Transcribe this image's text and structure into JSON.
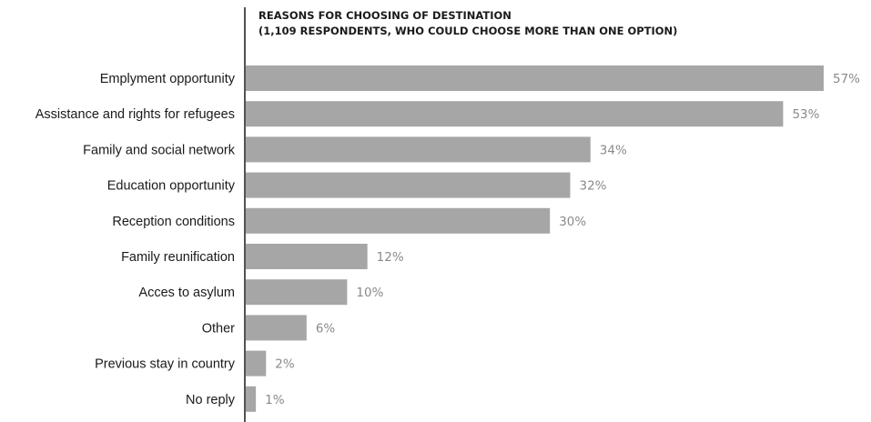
{
  "chart_data": {
    "type": "bar",
    "orientation": "horizontal",
    "title_lines": [
      "REASONS FOR CHOOSING OF DESTINATION",
      "(1,109 RESPONDENTS, WHO COULD CHOOSE MORE THAN ONE OPTION)"
    ],
    "categories": [
      "Emplyment opportunity",
      "Assistance and rights for refugees",
      "Family and social network",
      "Education opportunity",
      "Reception conditions",
      "Family reunification",
      "Acces to asylum",
      "Other",
      "Previous stay in country",
      "No reply"
    ],
    "values": [
      57,
      53,
      34,
      32,
      30,
      12,
      10,
      6,
      2,
      1
    ],
    "value_labels": [
      "57%",
      "53%",
      "34%",
      "32%",
      "30%",
      "12%",
      "10%",
      "6%",
      "2%",
      "1%"
    ],
    "xlim": [
      0,
      57
    ],
    "bar_color": "#a6a6a6",
    "axis_color": "#1a1a1a",
    "grid": false,
    "legend": "none"
  }
}
